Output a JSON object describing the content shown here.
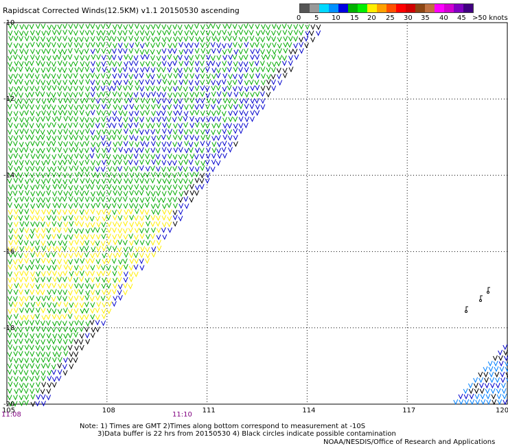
{
  "title": "Rapidscat Corrected Winds(12.5KM) v1.1 20150530 ascending",
  "legend": {
    "colors": [
      "#555555",
      "#999999",
      "#00d8ff",
      "#0090ff",
      "#0000e0",
      "#00b000",
      "#00ee00",
      "#ffee00",
      "#ffa000",
      "#ff5000",
      "#ff0000",
      "#d00000",
      "#8b4513",
      "#c07040",
      "#ff00ff",
      "#d000d0",
      "#8000c0",
      "#400080"
    ],
    "labels": [
      "0",
      "5",
      "10",
      "15",
      "20",
      "25",
      "30",
      "35",
      "40",
      "45",
      ">50 knots"
    ]
  },
  "map": {
    "lon_ticks": [
      "105",
      "108",
      "111",
      "114",
      "117",
      "120"
    ],
    "lat_ticks": [
      "-10",
      "-12",
      "-14",
      "-16",
      "-18",
      "-20"
    ],
    "lon_range": [
      105,
      120
    ],
    "lat_range": [
      -20,
      -10
    ],
    "grid": "dotted",
    "wind_colors": {
      "calm": "#000000",
      "light": "#0080ff",
      "moderate": "#0000cc",
      "fresh": "#00aa00",
      "strong": "#ffee00",
      "gale": "#ff0000"
    },
    "features": [
      "wind-barbs",
      "swath-edge",
      "contamination-circles"
    ]
  },
  "times": [
    "11:08",
    "11:10"
  ],
  "notes": [
    "Note: 1) Times are GMT 2)Times along bottom correspond to measurement at -10S",
    "3)Data buffer is 22 hrs from 20150530 4) Black circles indicate possible contamination"
  ],
  "credit": "NOAA/NESDIS/Office of Research and Applications"
}
